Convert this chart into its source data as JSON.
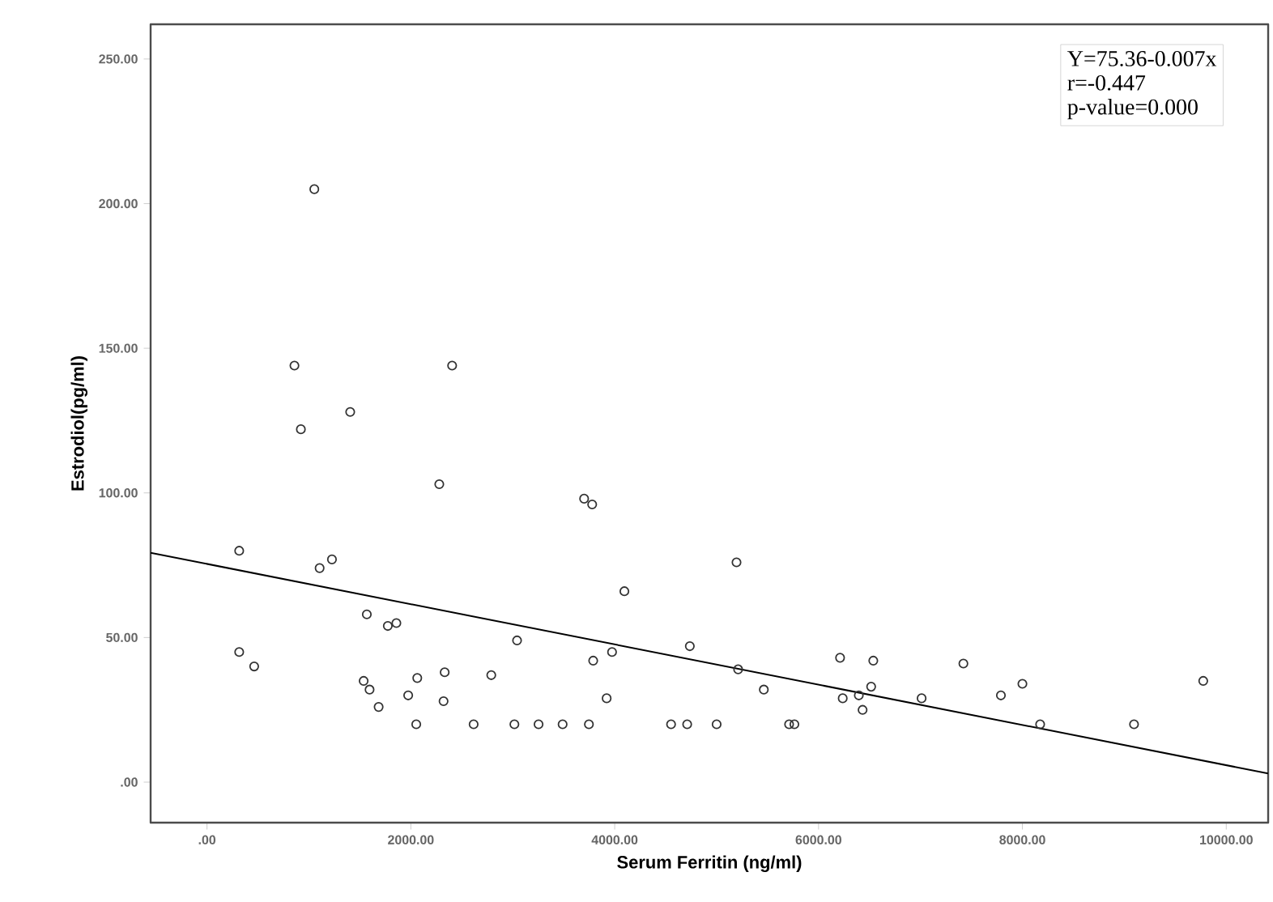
{
  "chart_data": {
    "type": "scatter",
    "xlabel": "Serum Ferritin (ng/ml)",
    "ylabel": "Estrodiol(pg/ml)",
    "xlim": [
      -553,
      10411
    ],
    "ylim": [
      -14,
      262
    ],
    "xticks": [
      {
        "value": 0,
        "label": ".00"
      },
      {
        "value": 2000,
        "label": "2000.00"
      },
      {
        "value": 4000,
        "label": "4000.00"
      },
      {
        "value": 6000,
        "label": "6000.00"
      },
      {
        "value": 8000,
        "label": "8000.00"
      },
      {
        "value": 10000,
        "label": "10000.00"
      }
    ],
    "yticks": [
      {
        "value": 0,
        "label": ".00"
      },
      {
        "value": 50,
        "label": "50.00"
      },
      {
        "value": 100,
        "label": "100.00"
      },
      {
        "value": 150,
        "label": "150.00"
      },
      {
        "value": 200,
        "label": "200.00"
      },
      {
        "value": 250,
        "label": "250.00"
      }
    ],
    "marker": "circle",
    "grid": false,
    "annotations": [
      "Y=75.36-0.007x",
      "r=-0.447",
      "p-value=0.000"
    ],
    "series": [
      {
        "color": "#333333",
        "x": [
          1053,
          858,
          2405,
          1405,
          921,
          2279,
          3700,
          3779,
          316,
          1105,
          1226,
          4095,
          1568,
          1774,
          1858,
          3042,
          316,
          463,
          3974,
          3789,
          1537,
          1595,
          1684,
          2063,
          1974,
          2332,
          2321,
          2789,
          3921,
          2053,
          2616,
          3016,
          3253,
          3489,
          3747,
          5195,
          4737,
          5211,
          5463,
          4553,
          4711,
          5000,
          5711,
          5763,
          6211,
          6537,
          6237,
          6395,
          6516,
          6432,
          7011,
          7421,
          7789,
          8000,
          8174,
          9095,
          9774
        ],
        "values": [
          205,
          144,
          144,
          128,
          122,
          103,
          98,
          96,
          80,
          74,
          77,
          66,
          58,
          54,
          55,
          49,
          45,
          40,
          45,
          42,
          35,
          32,
          26,
          36,
          30,
          38,
          28,
          37,
          29,
          20,
          20,
          20,
          20,
          20,
          20,
          76,
          47,
          39,
          32,
          20,
          20,
          20,
          20,
          20,
          43,
          42,
          29,
          30,
          33,
          25,
          29,
          41,
          30,
          34,
          20,
          20,
          35
        ]
      },
      {
        "type": "line",
        "marker": "none",
        "color": "#000000",
        "x": [
          -553,
          10411
        ],
        "values": [
          79.3,
          3
        ]
      }
    ]
  }
}
